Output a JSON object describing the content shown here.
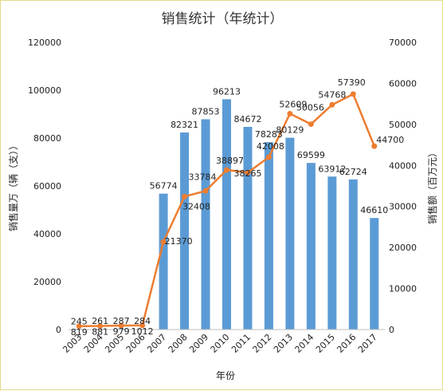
{
  "chart_data": {
    "type": "bar+line",
    "title": "销售统计（年统计）",
    "xlabel": "年份",
    "ylabel_left": "销售量万（辆（支））",
    "ylabel_left_display": "销售量万（辆（支））",
    "ylabel_right": "销售额（百万元）",
    "categories": [
      "2003",
      "2004",
      "2005",
      "2006",
      "2007",
      "2008",
      "2009",
      "2010",
      "2011",
      "2012",
      "2013",
      "2014",
      "2015",
      "2016",
      "2017"
    ],
    "left_axis": {
      "min": 0,
      "max": 120000,
      "ticks": [
        "0",
        "20000",
        "40000",
        "60000",
        "80000",
        "100000",
        "120000"
      ]
    },
    "right_axis": {
      "min": 0,
      "max": 70000,
      "ticks": [
        "0",
        "10000",
        "20000",
        "30000",
        "40000",
        "50000",
        "60000",
        "70000"
      ]
    },
    "grid": false,
    "legend": "none",
    "series": [
      {
        "type": "bar",
        "axis": "left",
        "color": "#5b9bd5",
        "values": [
          245,
          261,
          287,
          284,
          56774,
          82321,
          87853,
          96213,
          84672,
          78283,
          80129,
          69599,
          63912,
          62724,
          46610
        ],
        "labels": [
          "245",
          "261",
          "287",
          "284",
          "56774",
          "82321",
          "87853",
          "96213",
          "84672",
          "78283",
          "80129",
          "69599",
          "63912",
          "62724",
          "46610"
        ]
      },
      {
        "type": "line",
        "axis": "right",
        "color": "#ed7d31",
        "values": [
          819,
          881,
          979,
          1012,
          21370,
          32408,
          33784,
          38897,
          38265,
          42008,
          52609,
          50056,
          54768,
          57390,
          44700
        ],
        "labels": [
          "819",
          "881",
          "979",
          "1012",
          "21370",
          "32408",
          "33784",
          "38897",
          "38265",
          "42008",
          "52609",
          "50056",
          "54768",
          "57390",
          "44700"
        ]
      }
    ]
  }
}
